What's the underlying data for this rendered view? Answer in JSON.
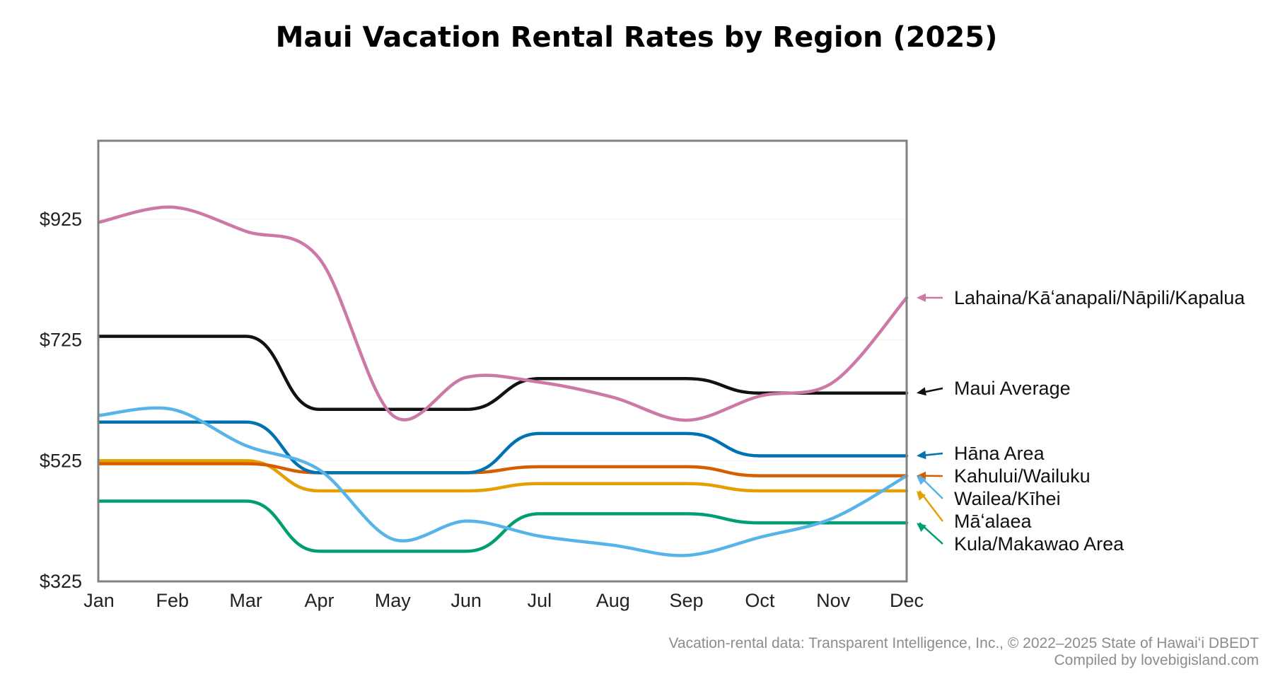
{
  "chart_data": {
    "type": "line",
    "title": "Maui Vacation Rental Rates by Region (2025)",
    "xlabel": "",
    "ylabel": "",
    "categories": [
      "Jan",
      "Feb",
      "Mar",
      "Apr",
      "May",
      "Jun",
      "Jul",
      "Aug",
      "Sep",
      "Oct",
      "Nov",
      "Dec"
    ],
    "yticks": [
      "$325",
      "$525",
      "$725",
      "$925"
    ],
    "ytick_values": [
      325,
      525,
      725,
      925
    ],
    "ylim": [
      325,
      1055
    ],
    "grid": "horizontal, faint",
    "legend": "direct labels at right",
    "series": [
      {
        "name": "Lahaina/Kāʻanapali/Nāpili/Kapalua",
        "color": "#CC79A7",
        "values": [
          920,
          945,
          905,
          860,
          600,
          663,
          655,
          630,
          592,
          632,
          655,
          795
        ],
        "smooth": true
      },
      {
        "name": "Maui Average",
        "color": "#111111",
        "values": [
          731,
          731,
          731,
          610,
          610,
          610,
          661,
          661,
          661,
          637,
          637,
          637
        ],
        "smooth": false
      },
      {
        "name": "Hāna Area",
        "color": "#0072B2",
        "values": [
          589,
          589,
          589,
          505,
          505,
          505,
          570,
          570,
          570,
          533,
          533,
          533
        ],
        "smooth": false
      },
      {
        "name": "Kahului/Wailuku",
        "color": "#D55E00",
        "values": [
          520,
          520,
          520,
          505,
          505,
          505,
          515,
          515,
          515,
          500,
          500,
          500
        ],
        "smooth": false
      },
      {
        "name": "Wailea/Kīhei",
        "color": "#56B4E9",
        "values": [
          600,
          610,
          550,
          510,
          395,
          425,
          400,
          385,
          368,
          398,
          430,
          500
        ],
        "smooth": true
      },
      {
        "name": "Māʻalaea",
        "color": "#E69F00",
        "values": [
          525,
          525,
          525,
          475,
          475,
          475,
          487,
          487,
          487,
          475,
          475,
          475
        ],
        "smooth": false
      },
      {
        "name": "Kula/Makawao Area",
        "color": "#009E73",
        "values": [
          458,
          458,
          458,
          375,
          375,
          375,
          437,
          437,
          437,
          422,
          422,
          422
        ],
        "smooth": false
      }
    ],
    "footer": {
      "source": "Vacation-rental data: Transparent Intelligence, Inc., © 2022–2025 State of Hawaiʻi DBEDT",
      "credit": "Compiled by lovebigisland.com"
    }
  }
}
